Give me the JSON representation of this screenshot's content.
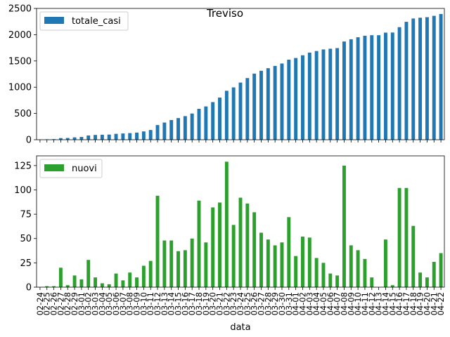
{
  "chart_data": [
    {
      "type": "bar",
      "title": "Treviso",
      "xlabel": "",
      "ylabel": "",
      "ylim": [
        0,
        2500
      ],
      "yticks": [
        0,
        500,
        1000,
        1500,
        2000,
        2500
      ],
      "legend_position": "top-left",
      "series": [
        {
          "name": "totale_casi",
          "color": "#1f77b4",
          "values": [
            3,
            8,
            11,
            31,
            33,
            45,
            53,
            81,
            91,
            95,
            98,
            112,
            119,
            126,
            136,
            158,
            185,
            279,
            327,
            375,
            412,
            449,
            499,
            588,
            634,
            716,
            803,
            932,
            996,
            1088,
            1174,
            1259,
            1313,
            1362,
            1405,
            1451,
            1524,
            1556,
            1608,
            1659,
            1689,
            1719,
            1733,
            1745,
            1870,
            1913,
            1951,
            1980,
            1990,
            1990,
            2039,
            2041,
            2143,
            2245,
            2308,
            2323,
            2333,
            2359,
            2394
          ]
        }
      ]
    },
    {
      "type": "bar",
      "title": "",
      "xlabel": "data",
      "ylabel": "",
      "ylim": [
        0,
        135
      ],
      "yticks": [
        0,
        25,
        50,
        75,
        100,
        125
      ],
      "legend_position": "top-left",
      "categories": [
        "02-24",
        "02-25",
        "02-26",
        "02-27",
        "02-28",
        "02-29",
        "03-01",
        "03-02",
        "03-03",
        "03-04",
        "03-05",
        "03-06",
        "03-07",
        "03-08",
        "03-09",
        "03-10",
        "03-11",
        "03-12",
        "03-13",
        "03-14",
        "03-15",
        "03-16",
        "03-17",
        "03-18",
        "03-19",
        "03-20",
        "03-21",
        "03-22",
        "03-23",
        "03-24",
        "03-25",
        "03-26",
        "03-27",
        "03-28",
        "03-29",
        "03-30",
        "03-31",
        "04-01",
        "04-02",
        "04-03",
        "04-04",
        "04-05",
        "04-06",
        "04-07",
        "04-08",
        "04-09",
        "04-10",
        "04-11",
        "04-12",
        "04-13",
        "04-14",
        "04-15",
        "04-16",
        "04-17",
        "04-18",
        "04-19",
        "04-20",
        "04-21",
        "04-22"
      ],
      "series": [
        {
          "name": "nuovi",
          "color": "#2ca02c",
          "values": [
            0,
            1,
            1,
            20,
            2,
            12,
            8,
            28,
            10,
            4,
            3,
            14,
            7,
            15,
            10,
            22,
            27,
            94,
            48,
            48,
            37,
            38,
            50,
            89,
            46,
            82,
            87,
            129,
            64,
            92,
            86,
            77,
            56,
            49,
            43,
            46,
            72,
            32,
            52,
            51,
            30,
            25,
            14,
            12,
            125,
            43,
            38,
            29,
            10,
            0,
            49,
            2,
            102,
            102,
            63,
            15,
            10,
            26,
            35
          ]
        }
      ]
    }
  ]
}
